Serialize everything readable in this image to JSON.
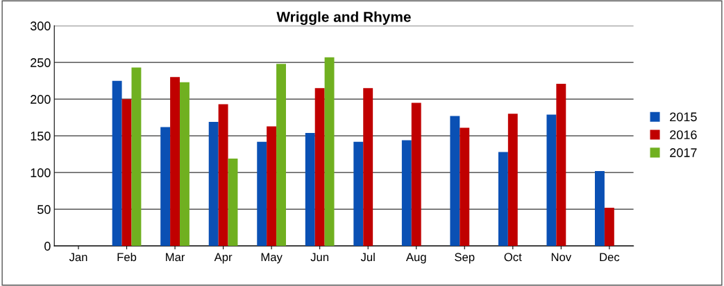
{
  "chart_data": {
    "type": "bar",
    "title": "Wriggle and Rhyme",
    "categories": [
      "Jan",
      "Feb",
      "Mar",
      "Apr",
      "May",
      "Jun",
      "Jul",
      "Aug",
      "Sep",
      "Oct",
      "Nov",
      "Dec"
    ],
    "series": [
      {
        "name": "2015",
        "color": "#0a50b4",
        "values": [
          null,
          225,
          162,
          169,
          142,
          154,
          142,
          144,
          177,
          128,
          179,
          102
        ]
      },
      {
        "name": "2016",
        "color": "#c00000",
        "values": [
          null,
          200,
          230,
          193,
          163,
          215,
          215,
          195,
          161,
          180,
          221,
          52
        ]
      },
      {
        "name": "2017",
        "color": "#70b020",
        "values": [
          null,
          243,
          223,
          119,
          248,
          257,
          null,
          null,
          null,
          null,
          null,
          null
        ]
      }
    ],
    "ylim": [
      0,
      300
    ],
    "yticks": [
      0,
      50,
      100,
      150,
      200,
      250,
      300
    ],
    "grid": "y",
    "legend": "right"
  }
}
